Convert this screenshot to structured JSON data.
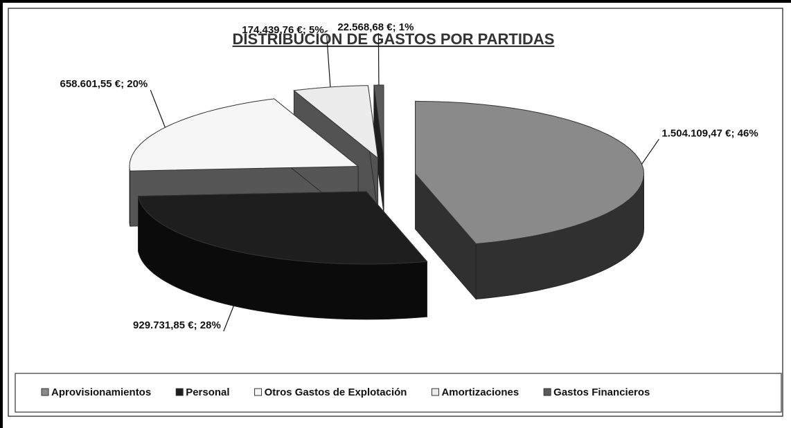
{
  "chart_data": {
    "type": "pie",
    "title": "DISTRIBUCIÓN DE GASTOS POR PARTIDAS",
    "categories": [
      "Aprovisionamientos",
      "Personal",
      "Otros Gastos de Explotación",
      "Amortizaciones",
      "Gastos Financieros"
    ],
    "values": [
      1504109.47,
      929731.85,
      658601.55,
      174439.76,
      22568.68
    ],
    "value_labels": [
      "1.504.109,47 €; 46%",
      "929.731,85 €; 28%",
      "658.601,55 €; 20%",
      "174.439,76 €; 5%",
      "22.568,68 €; 1%"
    ],
    "colors": [
      "#8a8a8a",
      "#1e1e1e",
      "#f6f6f6",
      "#ececec",
      "#5a5a5a"
    ],
    "legend": "bottom"
  }
}
